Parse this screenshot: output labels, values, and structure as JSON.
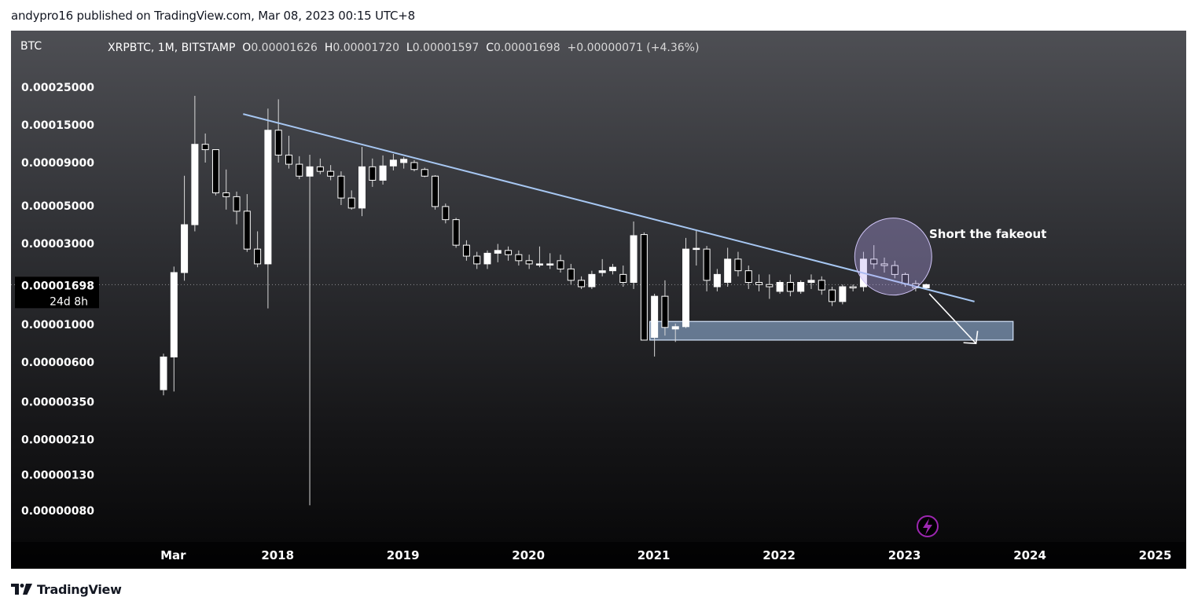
{
  "header": {
    "publisher": "andypro16 published on TradingView.com, Mar 08, 2023 00:15 UTC+8"
  },
  "footer": {
    "brand": "TradingView"
  },
  "colors": {
    "bull_body": "#ffffff",
    "bear_body": "#000000",
    "trendline": "#a7c7f2",
    "zone_fill": "#9dbfe9",
    "circle": "#b6a5f2",
    "arrow": "#ffffff",
    "lightning": "#9c27b0"
  },
  "chart_data": {
    "type": "candlestick",
    "symbol": "XRPBTC",
    "interval": "1M",
    "exchange": "BITSTAMP",
    "currency_label": "BTC",
    "scale": "log",
    "ohlc_header": {
      "o_label": "O",
      "o_value": "0.00001626",
      "h_label": "H",
      "h_value": "0.00001720",
      "l_label": "L",
      "l_value": "0.00001597",
      "c_label": "C",
      "c_value": "0.00001698",
      "change": "+0.00000071 (+4.36%)"
    },
    "last_price_label": "0.00001698",
    "countdown_label": "24d 8h",
    "y_ticks": [
      {
        "value": 0.00025,
        "label": "0.00025000"
      },
      {
        "value": 0.00015,
        "label": "0.00015000"
      },
      {
        "value": 9e-05,
        "label": "0.00009000"
      },
      {
        "value": 5e-05,
        "label": "0.00005000"
      },
      {
        "value": 3e-05,
        "label": "0.00003000"
      },
      {
        "value": 1e-05,
        "label": "0.00001000"
      },
      {
        "value": 6e-06,
        "label": "0.00000600"
      },
      {
        "value": 3.5e-06,
        "label": "0.00000350"
      },
      {
        "value": 2.1e-06,
        "label": "0.00000210"
      },
      {
        "value": 1.3e-06,
        "label": "0.00000130"
      },
      {
        "value": 8e-07,
        "label": "0.00000080"
      }
    ],
    "x_ticks": [
      {
        "date": "2017-03",
        "label": "Mar"
      },
      {
        "date": "2018-01",
        "label": "2018"
      },
      {
        "date": "2019-01",
        "label": "2019"
      },
      {
        "date": "2020-01",
        "label": "2020"
      },
      {
        "date": "2021-01",
        "label": "2021"
      },
      {
        "date": "2022-01",
        "label": "2022"
      },
      {
        "date": "2023-01",
        "label": "2023"
      },
      {
        "date": "2024-01",
        "label": "2024"
      },
      {
        "date": "2025-01",
        "label": "2025"
      }
    ],
    "columns": [
      "date",
      "open",
      "high",
      "low",
      "close"
    ],
    "candles": [
      [
        "2017-02",
        4.08e-06,
        6.65e-06,
        3.78e-06,
        6.36e-06
      ],
      [
        "2017-03",
        6.36e-06,
        2.17e-05,
        3.98e-06,
        2e-05
      ],
      [
        "2017-04",
        2e-05,
        7.44e-05,
        1.79e-05,
        3.83e-05
      ],
      [
        "2017-05",
        3.83e-05,
        0.00022,
        3.5e-05,
        0.000114
      ],
      [
        "2017-06",
        0.000114,
        0.000132,
        8.9e-05,
        0.000106
      ],
      [
        "2017-07",
        0.000106,
        0.000106,
        5.7e-05,
        5.9e-05
      ],
      [
        "2017-08",
        5.9e-05,
        8.1e-05,
        4.7e-05,
        5.6e-05
      ],
      [
        "2017-09",
        5.6e-05,
        6e-05,
        3.85e-05,
        4.6e-05
      ],
      [
        "2017-10",
        4.6e-05,
        5.8e-05,
        2.65e-05,
        2.75e-05
      ],
      [
        "2017-11",
        2.75e-05,
        3.5e-05,
        2.15e-05,
        2.25e-05
      ],
      [
        "2017-12",
        2.25e-05,
        0.000185,
        1.23e-05,
        0.000138
      ],
      [
        "2018-01",
        0.000138,
        0.00021,
        8.9e-05,
        9.85e-05
      ],
      [
        "2018-02",
        9.85e-05,
        0.000128,
        8.2e-05,
        8.7e-05
      ],
      [
        "2018-03",
        8.7e-05,
        9.7e-05,
        7.1e-05,
        7.4e-05
      ],
      [
        "2018-04",
        7.4e-05,
        9.9e-05,
        8.5e-07,
        8.4e-05
      ],
      [
        "2018-05",
        8.4e-05,
        9.4e-05,
        7.6e-05,
        7.9e-05
      ],
      [
        "2018-06",
        7.9e-05,
        8.6e-05,
        7e-05,
        7.4e-05
      ],
      [
        "2018-07",
        7.4e-05,
        7.9e-05,
        5e-05,
        5.5e-05
      ],
      [
        "2018-08",
        5.5e-05,
        6.1e-05,
        4.7e-05,
        4.8e-05
      ],
      [
        "2018-09",
        4.8e-05,
        0.00011,
        4.3e-05,
        8.4e-05
      ],
      [
        "2018-10",
        8.4e-05,
        9.4e-05,
        6.4e-05,
        7e-05
      ],
      [
        "2018-11",
        7e-05,
        9.8e-05,
        6.6e-05,
        8.5e-05
      ],
      [
        "2018-12",
        8.5e-05,
        0.0001,
        8e-05,
        9.2e-05
      ],
      [
        "2019-01",
        8.9e-05,
        9.6e-05,
        8.2e-05,
        9.3e-05
      ],
      [
        "2019-02",
        8.9e-05,
        9.2e-05,
        7.9e-05,
        8.1e-05
      ],
      [
        "2019-03",
        8.1e-05,
        8.3e-05,
        7.3e-05,
        7.4e-05
      ],
      [
        "2019-04",
        7.4e-05,
        7.5e-05,
        4.7e-05,
        4.9e-05
      ],
      [
        "2019-05",
        4.9e-05,
        5.1e-05,
        3.9e-05,
        4.1e-05
      ],
      [
        "2019-06",
        4.1e-05,
        4.2e-05,
        2.8e-05,
        2.9e-05
      ],
      [
        "2019-07",
        2.9e-05,
        3.1e-05,
        2.35e-05,
        2.5e-05
      ],
      [
        "2019-08",
        2.5e-05,
        2.65e-05,
        2.1e-05,
        2.25e-05
      ],
      [
        "2019-09",
        2.25e-05,
        2.7e-05,
        2.1e-05,
        2.6e-05
      ],
      [
        "2019-10",
        2.6e-05,
        2.95e-05,
        2.3e-05,
        2.7e-05
      ],
      [
        "2019-11",
        2.7e-05,
        2.85e-05,
        2.35e-05,
        2.55e-05
      ],
      [
        "2019-12",
        2.55e-05,
        2.7e-05,
        2.2e-05,
        2.35e-05
      ],
      [
        "2020-01",
        2.35e-05,
        2.55e-05,
        2.1e-05,
        2.25e-05
      ],
      [
        "2020-02",
        2.25e-05,
        2.85e-05,
        2.15e-05,
        2.25e-05
      ],
      [
        "2020-03",
        2.25e-05,
        2.6e-05,
        2.1e-05,
        2.25e-05
      ],
      [
        "2020-04",
        2.35e-05,
        2.55e-05,
        2e-05,
        2.1e-05
      ],
      [
        "2020-05",
        2.1e-05,
        2.25e-05,
        1.7e-05,
        1.8e-05
      ],
      [
        "2020-06",
        1.8e-05,
        1.9e-05,
        1.6e-05,
        1.65e-05
      ],
      [
        "2020-07",
        1.65e-05,
        2.05e-05,
        1.6e-05,
        1.95e-05
      ],
      [
        "2020-08",
        2e-05,
        2.4e-05,
        1.9e-05,
        2.05e-05
      ],
      [
        "2020-09",
        2.05e-05,
        2.25e-05,
        1.95e-05,
        2.15e-05
      ],
      [
        "2020-10",
        1.95e-05,
        2.2e-05,
        1.65e-05,
        1.75e-05
      ],
      [
        "2020-11",
        1.75e-05,
        4e-05,
        1.6e-05,
        3.3e-05
      ],
      [
        "2020-12",
        3.35e-05,
        3.45e-05,
        8.2e-06,
        8e-06
      ],
      [
        "2021-01",
        8.3e-06,
        1.5e-05,
        6.4e-06,
        1.45e-05
      ],
      [
        "2021-02",
        1.45e-05,
        1.8e-05,
        8.5e-06,
        9.5e-06
      ],
      [
        "2021-03",
        9.3e-06,
        1e-05,
        7.8e-06,
        9.6e-06
      ],
      [
        "2021-04",
        9.6e-06,
        3.2e-05,
        9.4e-06,
        2.75e-05
      ],
      [
        "2021-05",
        2.75e-05,
        3.55e-05,
        2.2e-05,
        2.78e-05
      ],
      [
        "2021-06",
        2.75e-05,
        2.87e-05,
        1.55e-05,
        1.8e-05
      ],
      [
        "2021-07",
        1.65e-05,
        2.1e-05,
        1.55e-05,
        1.95e-05
      ],
      [
        "2021-08",
        1.75e-05,
        2.8e-05,
        1.65e-05,
        2.4e-05
      ],
      [
        "2021-09",
        2.4e-05,
        2.65e-05,
        1.9e-05,
        2.05e-05
      ],
      [
        "2021-10",
        2.05e-05,
        2.2e-05,
        1.6e-05,
        1.75e-05
      ],
      [
        "2021-11",
        1.75e-05,
        1.95e-05,
        1.55e-05,
        1.7e-05
      ],
      [
        "2021-12",
        1.7e-05,
        1.95e-05,
        1.4e-05,
        1.65e-05
      ],
      [
        "2022-01",
        1.55e-05,
        1.8e-05,
        1.5e-05,
        1.75e-05
      ],
      [
        "2022-02",
        1.75e-05,
        1.95e-05,
        1.45e-05,
        1.55e-05
      ],
      [
        "2022-03",
        1.55e-05,
        1.8e-05,
        1.5e-05,
        1.75e-05
      ],
      [
        "2022-04",
        1.75e-05,
        1.95e-05,
        1.6e-05,
        1.8e-05
      ],
      [
        "2022-05",
        1.8e-05,
        1.9e-05,
        1.48e-05,
        1.58e-05
      ],
      [
        "2022-06",
        1.58e-05,
        1.65e-05,
        1.27e-05,
        1.35e-05
      ],
      [
        "2022-07",
        1.35e-05,
        1.7e-05,
        1.3e-05,
        1.65e-05
      ],
      [
        "2022-08",
        1.65e-05,
        1.7e-05,
        1.55e-05,
        1.63e-05
      ],
      [
        "2022-09",
        1.65e-05,
        2.65e-05,
        1.55e-05,
        2.4e-05
      ],
      [
        "2022-10",
        2.4e-05,
        2.9e-05,
        2.1e-05,
        2.25e-05
      ],
      [
        "2022-11",
        2.25e-05,
        2.45e-05,
        2e-05,
        2.2e-05
      ],
      [
        "2022-12",
        2.2e-05,
        2.35e-05,
        1.85e-05,
        1.95e-05
      ],
      [
        "2023-01",
        1.95e-05,
        2e-05,
        1.65e-05,
        1.72e-05
      ],
      [
        "2023-02",
        1.72e-05,
        1.8e-05,
        1.55e-05,
        1.626e-05
      ],
      [
        "2023-03",
        1.626e-05,
        1.72e-05,
        1.597e-05,
        1.698e-05
      ]
    ],
    "annotations": {
      "note": "Short the fakeout",
      "trendline": {
        "from": [
          "2017-10",
          0.000172
        ],
        "to": [
          "2023-08",
          1.35e-05
        ]
      },
      "target_zone": {
        "from": "2021-01",
        "to": "2023-12",
        "top": 1.03e-05,
        "bottom": 8e-06
      },
      "circle": {
        "center": [
          "2022-12",
          2.38e-05
        ]
      },
      "arrow": {
        "from": [
          "2023-03",
          1.6e-05
        ],
        "to": [
          "2023-08",
          8.5e-06
        ]
      }
    }
  }
}
